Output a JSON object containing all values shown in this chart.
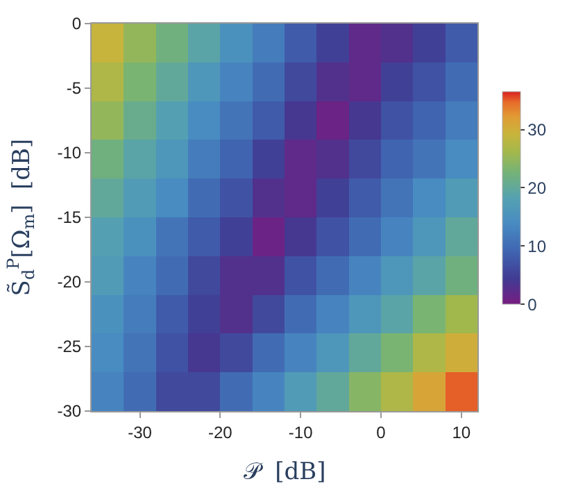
{
  "chart_data": {
    "type": "heatmap",
    "xlabel": "𝒫  [dB]",
    "ylabel": "S̃$_{d}$$^{P}$[Ω$_{m}$]  [dB]",
    "x": [
      -34,
      -30,
      -26,
      -22,
      -18,
      -14,
      -10,
      -6,
      -2,
      2,
      6,
      10
    ],
    "y": [
      -1.5,
      -4.5,
      -7.5,
      -10.5,
      -13.5,
      -16.5,
      -19.5,
      -22.5,
      -25.5,
      -28.5
    ],
    "cells": [
      [
        29,
        25,
        22,
        19,
        15,
        12,
        8,
        5,
        2,
        3,
        5,
        8
      ],
      [
        27,
        23,
        20,
        16,
        13,
        10,
        6,
        3,
        2,
        5,
        7,
        10
      ],
      [
        25,
        21,
        18,
        14,
        11,
        8,
        4,
        1,
        4,
        7,
        9,
        12
      ],
      [
        22,
        19,
        16,
        12,
        9,
        5,
        2,
        3,
        6,
        9,
        11,
        14
      ],
      [
        20,
        17,
        14,
        10,
        7,
        3,
        2,
        5,
        8,
        11,
        14,
        17
      ],
      [
        18,
        15,
        11,
        8,
        5,
        1,
        4,
        7,
        10,
        13,
        16,
        20
      ],
      [
        17,
        13,
        10,
        6,
        3,
        3,
        7,
        10,
        13,
        16,
        19,
        22
      ],
      [
        15,
        12,
        8,
        5,
        3,
        6,
        10,
        13,
        16,
        19,
        23,
        26
      ],
      [
        14,
        11,
        7,
        4,
        6,
        10,
        13,
        16,
        20,
        23,
        27,
        30
      ],
      [
        13,
        10,
        6,
        6,
        10,
        13,
        17,
        20,
        24,
        27,
        31,
        35
      ]
    ],
    "xlim": [
      -36,
      12
    ],
    "ylim": [
      -30,
      0
    ],
    "xticks": [
      -30,
      -20,
      -10,
      0,
      10
    ],
    "yticks": [
      0,
      -5,
      -10,
      -15,
      -20,
      -25,
      -30
    ],
    "clim": [
      0,
      36.5
    ],
    "cticks": [
      0,
      10,
      20,
      30
    ]
  }
}
